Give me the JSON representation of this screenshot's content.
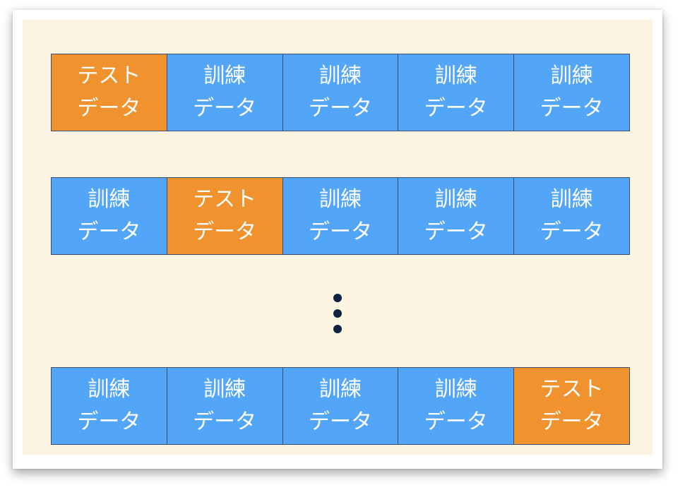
{
  "rows": [
    {
      "cells": [
        {
          "line1": "テスト",
          "line2": "データ",
          "kind": "test"
        },
        {
          "line1": "訓練",
          "line2": "データ",
          "kind": "train"
        },
        {
          "line1": "訓練",
          "line2": "データ",
          "kind": "train"
        },
        {
          "line1": "訓練",
          "line2": "データ",
          "kind": "train"
        },
        {
          "line1": "訓練",
          "line2": "データ",
          "kind": "train"
        }
      ]
    },
    {
      "cells": [
        {
          "line1": "訓練",
          "line2": "データ",
          "kind": "train"
        },
        {
          "line1": "テスト",
          "line2": "データ",
          "kind": "test"
        },
        {
          "line1": "訓練",
          "line2": "データ",
          "kind": "train"
        },
        {
          "line1": "訓練",
          "line2": "データ",
          "kind": "train"
        },
        {
          "line1": "訓練",
          "line2": "データ",
          "kind": "train"
        }
      ]
    },
    {
      "cells": [
        {
          "line1": "訓練",
          "line2": "データ",
          "kind": "train"
        },
        {
          "line1": "訓練",
          "line2": "データ",
          "kind": "train"
        },
        {
          "line1": "訓練",
          "line2": "データ",
          "kind": "train"
        },
        {
          "line1": "訓練",
          "line2": "データ",
          "kind": "train"
        },
        {
          "line1": "テスト",
          "line2": "データ",
          "kind": "test"
        }
      ]
    }
  ],
  "colors": {
    "train": "#53a6f7",
    "test": "#f0922e",
    "background": "#fcf4e3",
    "ellipsis": "#0f2240"
  },
  "ellipsis_icon": "vertical-ellipsis-icon"
}
